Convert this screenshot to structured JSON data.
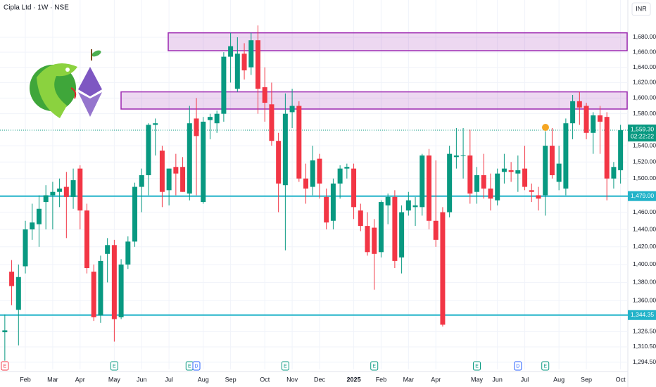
{
  "chart_data": {
    "type": "candlestick",
    "title": "Cipla Ltd · 1W · NSE",
    "currency": "INR",
    "log": true,
    "grid": true,
    "up_color": "#089981",
    "down_color": "#f23645",
    "ylim": [
      1287,
      1731
    ],
    "yticks": [
      {
        "value": 1680,
        "label": "1,680.00"
      },
      {
        "value": 1660,
        "label": "1,660.00"
      },
      {
        "value": 1640,
        "label": "1,640.00"
      },
      {
        "value": 1620,
        "label": "1,620.00"
      },
      {
        "value": 1600,
        "label": "1,600.00"
      },
      {
        "value": 1580,
        "label": "1,580.00"
      },
      {
        "value": 1540,
        "label": "1,540.00"
      },
      {
        "value": 1520,
        "label": "1,520.00"
      },
      {
        "value": 1500,
        "label": "1,500.00"
      },
      {
        "value": 1460,
        "label": "1,460.00"
      },
      {
        "value": 1440,
        "label": "1,440.00"
      },
      {
        "value": 1420,
        "label": "1,420.00"
      },
      {
        "value": 1400,
        "label": "1,400.00"
      },
      {
        "value": 1380,
        "label": "1,380.00"
      },
      {
        "value": 1360,
        "label": "1,360.00"
      },
      {
        "value": 1326.5,
        "label": "1,326.50"
      },
      {
        "value": 1310.5,
        "label": "1,310.50"
      },
      {
        "value": 1294.5,
        "label": "1,294.50"
      }
    ],
    "categories": [
      null,
      null,
      null,
      "Feb",
      null,
      null,
      null,
      "Mar",
      null,
      null,
      null,
      "Apr",
      null,
      null,
      null,
      null,
      "May",
      null,
      null,
      null,
      "Jun",
      null,
      null,
      null,
      "Jul",
      null,
      null,
      null,
      null,
      "Aug",
      null,
      null,
      null,
      "Sep",
      null,
      null,
      null,
      null,
      "Oct",
      null,
      null,
      null,
      "Nov",
      null,
      null,
      null,
      "Dec",
      null,
      null,
      null,
      null,
      "2025",
      null,
      null,
      null,
      "Feb",
      null,
      null,
      null,
      "Mar",
      null,
      null,
      null,
      "Apr",
      null,
      null,
      null,
      null,
      null,
      "May",
      null,
      null,
      "Jun",
      null,
      null,
      null,
      "Jul",
      null,
      null,
      null,
      null,
      "Aug",
      null,
      null,
      null,
      "Sep",
      null,
      null,
      null,
      null,
      "Oct"
    ],
    "open": [
      1326,
      1392,
      1350,
      1398,
      1440,
      1446,
      1472,
      1480,
      1484,
      1490,
      1478,
      1512,
      1462,
      1392,
      1344,
      1412,
      1422,
      1342,
      1400,
      1426,
      1490,
      1504,
      1566,
      1534,
      1486,
      1514,
      1514,
      1482,
      1574,
      1472,
      1572,
      1568,
      1580,
      1654,
      1612,
      1658,
      1640,
      1676,
      1614,
      1592,
      1546,
      1492,
      1582,
      1590,
      1500,
      1490,
      1524,
      1478,
      1450,
      1494,
      1512,
      1512,
      1462,
      1444,
      1442,
      1414,
      1468,
      1478,
      1408,
      1462,
      1466,
      1466,
      1528,
      1450,
      1460,
      1460,
      1526,
      1528,
      1528,
      1484,
      1504,
      1488,
      1474,
      1508,
      1510,
      1506,
      1512,
      1486,
      1480,
      1480,
      1540,
      1496,
      1488,
      1568,
      1596,
      1590,
      1556,
      1578,
      1576,
      1500,
      1510
    ],
    "high": [
      1345,
      1405,
      1400,
      1450,
      1470,
      1480,
      1492,
      1496,
      1500,
      1508,
      1512,
      1516,
      1470,
      1400,
      1410,
      1430,
      1428,
      1406,
      1432,
      1495,
      1512,
      1568,
      1574,
      1540,
      1512,
      1530,
      1526,
      1590,
      1600,
      1576,
      1580,
      1584,
      1660,
      1686,
      1680,
      1672,
      1686,
      1696,
      1640,
      1620,
      1556,
      1606,
      1612,
      1596,
      1518,
      1540,
      1530,
      1488,
      1500,
      1516,
      1518,
      1518,
      1470,
      1460,
      1452,
      1474,
      1482,
      1486,
      1468,
      1484,
      1478,
      1530,
      1536,
      1522,
      1466,
      1540,
      1562,
      1562,
      1560,
      1514,
      1530,
      1506,
      1512,
      1530,
      1520,
      1528,
      1540,
      1494,
      1490,
      1558,
      1562,
      1540,
      1574,
      1604,
      1608,
      1594,
      1582,
      1590,
      1582,
      1520,
      1566
    ],
    "low": [
      1296,
      1355,
      1312,
      1390,
      1428,
      1420,
      1440,
      1440,
      1466,
      1430,
      1464,
      1440,
      1390,
      1338,
      1336,
      1380,
      1316,
      1340,
      1395,
      1420,
      1460,
      1480,
      1528,
      1466,
      1468,
      1480,
      1484,
      1474,
      1480,
      1470,
      1548,
      1556,
      1570,
      1620,
      1608,
      1624,
      1630,
      1580,
      1570,
      1540,
      1460,
      1416,
      1562,
      1496,
      1470,
      1480,
      1476,
      1440,
      1440,
      1476,
      1500,
      1452,
      1438,
      1410,
      1372,
      1408,
      1446,
      1396,
      1390,
      1456,
      1444,
      1456,
      1440,
      1420,
      1332,
      1454,
      1512,
      1500,
      1470,
      1470,
      1476,
      1462,
      1468,
      1494,
      1496,
      1484,
      1486,
      1472,
      1462,
      1456,
      1500,
      1486,
      1480,
      1548,
      1566,
      1548,
      1530,
      1530,
      1474,
      1488,
      1494
    ],
    "close": [
      1328,
      1376,
      1386,
      1440,
      1448,
      1464,
      1480,
      1484,
      1488,
      1478,
      1498,
      1462,
      1396,
      1342,
      1404,
      1422,
      1340,
      1400,
      1426,
      1490,
      1504,
      1566,
      1568,
      1484,
      1512,
      1506,
      1484,
      1568,
      1552,
      1570,
      1576,
      1580,
      1654,
      1668,
      1658,
      1636,
      1676,
      1612,
      1594,
      1546,
      1494,
      1580,
      1590,
      1500,
      1488,
      1522,
      1494,
      1448,
      1494,
      1512,
      1514,
      1466,
      1444,
      1414,
      1412,
      1472,
      1478,
      1404,
      1460,
      1474,
      1468,
      1528,
      1450,
      1428,
      1334,
      1530,
      1528,
      1528,
      1482,
      1504,
      1488,
      1476,
      1506,
      1512,
      1508,
      1510,
      1490,
      1484,
      1476,
      1540,
      1504,
      1518,
      1568,
      1596,
      1588,
      1556,
      1578,
      1570,
      1500,
      1514,
      1559.3
    ],
    "events": [
      {
        "label": "E",
        "color": "#f23645"
      },
      null,
      null,
      null,
      null,
      null,
      null,
      null,
      null,
      null,
      null,
      null,
      null,
      null,
      null,
      null,
      {
        "label": "E",
        "color": "#089981"
      },
      null,
      null,
      null,
      null,
      null,
      null,
      null,
      null,
      null,
      null,
      {
        "label": "E",
        "color": "#089981"
      },
      {
        "label": "D",
        "color": "#2962ff"
      },
      null,
      null,
      null,
      null,
      null,
      null,
      null,
      null,
      null,
      null,
      null,
      null,
      {
        "label": "E",
        "color": "#089981"
      },
      null,
      null,
      null,
      null,
      null,
      null,
      null,
      null,
      null,
      null,
      null,
      null,
      {
        "label": "E",
        "color": "#089981"
      },
      null,
      null,
      null,
      null,
      null,
      null,
      null,
      null,
      null,
      null,
      null,
      null,
      null,
      null,
      {
        "label": "E",
        "color": "#089981"
      },
      null,
      null,
      null,
      null,
      null,
      {
        "label": "D",
        "color": "#2962ff"
      },
      null,
      null,
      null,
      {
        "label": "E",
        "color": "#089981"
      },
      null,
      null,
      null,
      null,
      null,
      null,
      null,
      null,
      null,
      null,
      null
    ],
    "zones": [
      {
        "from": 1662,
        "to": 1686,
        "color": "#9c27b0"
      },
      {
        "from": 1586,
        "to": 1608,
        "color": "#9c27b0"
      }
    ],
    "hlines": [
      {
        "value": 1479,
        "label": "1,479.00",
        "color": "#22b3c9"
      },
      {
        "value": 1344.35,
        "label": "1,344.35",
        "color": "#22b3c9"
      }
    ],
    "last_price": {
      "value": 1559.3,
      "label": "1,559.30",
      "countdown": "02:22:22",
      "color": "#089981"
    }
  }
}
